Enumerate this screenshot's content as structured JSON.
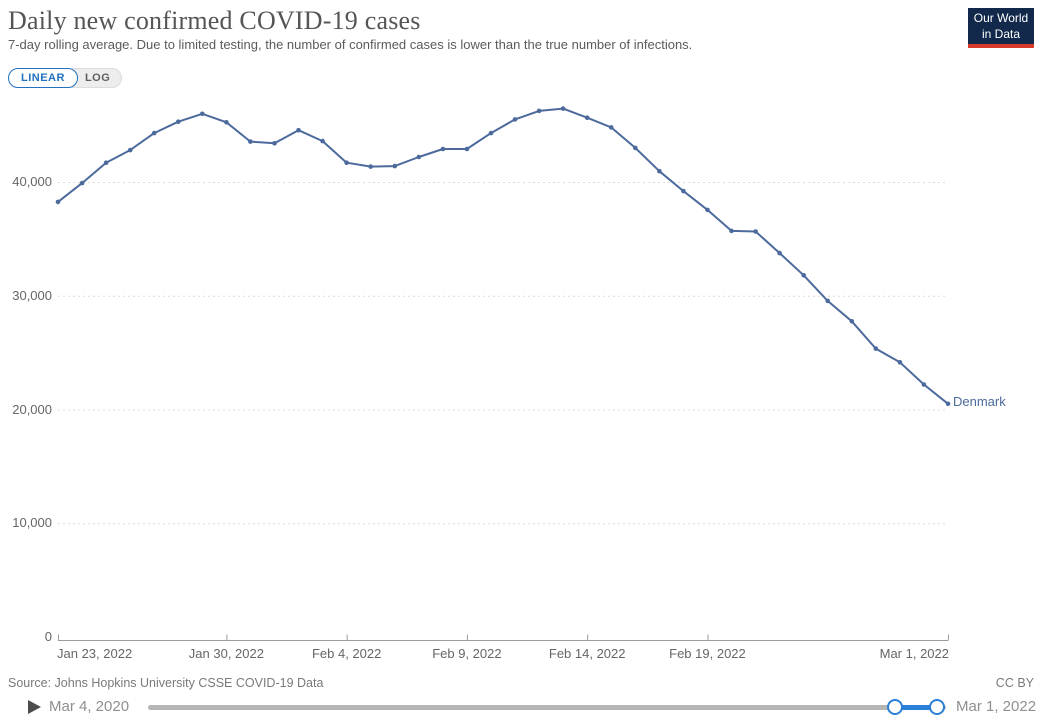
{
  "header": {
    "title": "Daily new confirmed COVID-19 cases",
    "subtitle": "7-day rolling average. Due to limited testing, the number of confirmed cases is lower than the true number of infections.",
    "logo_line1": "Our World",
    "logo_line2": "in Data"
  },
  "controls": {
    "linear_label": "LINEAR",
    "log_label": "LOG"
  },
  "chart_data": {
    "type": "line",
    "title": "Daily new confirmed COVID-19 cases",
    "xlabel": "",
    "ylabel": "",
    "grid": "horizontal-dashed",
    "legend_position": "end-of-line",
    "ylim": [
      0,
      47500
    ],
    "x": [
      "Jan 23, 2022",
      "Jan 24, 2022",
      "Jan 25, 2022",
      "Jan 26, 2022",
      "Jan 27, 2022",
      "Jan 28, 2022",
      "Jan 29, 2022",
      "Jan 30, 2022",
      "Jan 31, 2022",
      "Feb 1, 2022",
      "Feb 2, 2022",
      "Feb 3, 2022",
      "Feb 4, 2022",
      "Feb 5, 2022",
      "Feb 6, 2022",
      "Feb 7, 2022",
      "Feb 8, 2022",
      "Feb 9, 2022",
      "Feb 10, 2022",
      "Feb 11, 2022",
      "Feb 12, 2022",
      "Feb 13, 2022",
      "Feb 14, 2022",
      "Feb 15, 2022",
      "Feb 16, 2022",
      "Feb 17, 2022",
      "Feb 18, 2022",
      "Feb 19, 2022",
      "Feb 20, 2022",
      "Feb 21, 2022",
      "Feb 22, 2022",
      "Feb 23, 2022",
      "Feb 24, 2022",
      "Feb 25, 2022",
      "Feb 26, 2022",
      "Feb 27, 2022",
      "Feb 28, 2022",
      "Mar 1, 2022"
    ],
    "series": [
      {
        "name": "Denmark",
        "color": "#4C6A9C",
        "values": [
          38250,
          39900,
          41700,
          42800,
          44300,
          45300,
          46000,
          45250,
          43550,
          43400,
          44550,
          43600,
          41700,
          41350,
          41400,
          42200,
          42900,
          42900,
          44300,
          45500,
          46250,
          46450,
          45650,
          44800,
          43000,
          40950,
          39200,
          37550,
          35700,
          35650,
          33750,
          31800,
          29550,
          27750,
          25350,
          24150,
          22200,
          20500
        ]
      }
    ],
    "end_label": "Denmark",
    "x_ticks": [
      {
        "day": 0,
        "label": "Jan 23, 2022"
      },
      {
        "day": 7,
        "label": "Jan 30, 2022"
      },
      {
        "day": 12,
        "label": "Feb 4, 2022"
      },
      {
        "day": 17,
        "label": "Feb 9, 2022"
      },
      {
        "day": 22,
        "label": "Feb 14, 2022"
      },
      {
        "day": 27,
        "label": "Feb 19, 2022"
      },
      {
        "day": 37,
        "label": "Mar 1, 2022"
      }
    ],
    "y_ticks": [
      {
        "value": 0,
        "label": "0"
      },
      {
        "value": 10000,
        "label": "10,000"
      },
      {
        "value": 20000,
        "label": "20,000"
      },
      {
        "value": 30000,
        "label": "30,000"
      },
      {
        "value": 40000,
        "label": "40,000"
      }
    ]
  },
  "footer": {
    "source": "Source: Johns Hopkins University CSSE COVID-19 Data",
    "license": "CC BY"
  },
  "timeline": {
    "start_date": "Mar 4, 2020",
    "end_date": "Mar 1, 2022",
    "range_start_frac": 0.936,
    "range_end_frac": 0.989
  },
  "colors": {
    "line": "#4C6A9C",
    "button_blue": "#2271c1",
    "slider_blue": "#2a80d8",
    "logo_bg": "#12294b",
    "logo_red": "#d93a2b",
    "grid": "#dcdcdc",
    "axis": "#9c9c9c",
    "tick_text": "#666666"
  }
}
